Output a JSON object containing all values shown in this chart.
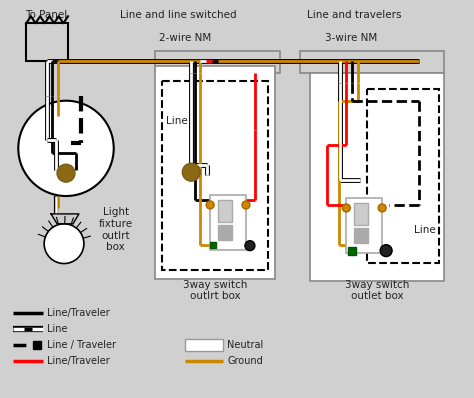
{
  "bg_color": "#d0d0d0",
  "label_to_panel": "To Panel",
  "label_line_switched": "Line and line switched",
  "label_line_travelers": "Line and travelers",
  "label_2wire": "2-wire NM",
  "label_3wire": "3-wire NM",
  "label_light_fixture": "Light\nfixture\noutlrt\nbox",
  "label_3way_switch1": "3way switch\noutlrt box",
  "label_3way_switch2": "3way switch\noutlet box",
  "label_line1": "Line",
  "label_line2": "Line"
}
